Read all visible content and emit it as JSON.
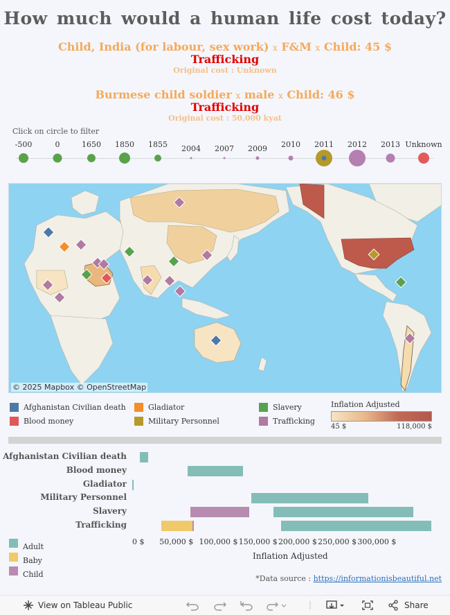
{
  "title": "How much would a human life cost today?",
  "stories": [
    {
      "head_a": "Child, India (for labour, sex work)",
      "x1": "x",
      "head_b": "F&M",
      "x2": "x",
      "head_c": "Child: 45 $",
      "category": "Trafficking",
      "original": "Original cost : Unknown"
    },
    {
      "head_a": "Burmese child soldier",
      "x1": "x",
      "head_b": "male",
      "x2": "x",
      "head_c": "Child: 46 $",
      "category": "Trafficking",
      "original": "Original cost : 50,000 kyat"
    }
  ],
  "timeline": {
    "hint": "Click on circle to filter",
    "years": [
      {
        "label": "-500",
        "color": "#5aa24a",
        "size": 14
      },
      {
        "label": "0",
        "color": "#5aa24a",
        "size": 13
      },
      {
        "label": "1650",
        "color": "#5aa24a",
        "size": 12
      },
      {
        "label": "1850",
        "color": "#5aa24a",
        "size": 16
      },
      {
        "label": "1855",
        "color": "#5aa24a",
        "size": 10
      },
      {
        "label": "2004",
        "color": "#b57fb0",
        "size": 3
      },
      {
        "label": "2007",
        "color": "#b57fb0",
        "size": 3
      },
      {
        "label": "2009",
        "color": "#b57fb0",
        "size": 5
      },
      {
        "label": "2010",
        "color": "#b57fb0",
        "size": 7
      },
      {
        "label": "2011",
        "color": "#b59a2a",
        "size": 24
      },
      {
        "label": "2012",
        "color": "#b57fb0",
        "size": 24
      },
      {
        "label": "2013",
        "color": "#b57fb0",
        "size": 13
      },
      {
        "label": "Unknown",
        "color": "#e25a5a",
        "size": 16
      }
    ]
  },
  "map": {
    "attribution": "© 2025 Mapbox  © OpenStreetMap"
  },
  "category_legend": [
    {
      "label": "Afghanistan Civilian death",
      "color": "#4e79a7"
    },
    {
      "label": "Gladiator",
      "color": "#f28e2b"
    },
    {
      "label": "Slavery",
      "color": "#59a14f"
    },
    {
      "label": "Blood money",
      "color": "#e15759"
    },
    {
      "label": "Military Personnel",
      "color": "#b59a2a"
    },
    {
      "label": "Trafficking",
      "color": "#b07aa1"
    }
  ],
  "gradient_legend": {
    "title": "Inflation Adjusted",
    "min": "45 $",
    "max": "118,000 $"
  },
  "chart_data": {
    "type": "bar",
    "orientation": "horizontal-range",
    "categories": [
      "Afghanistan Civilian death",
      "Blood money",
      "Gladiator",
      "Military Personnel",
      "Slavery",
      "Trafficking"
    ],
    "series": [
      {
        "name": "Adult",
        "color": "#84bdb8",
        "ranges": [
          [
            10000,
            20000
          ],
          [
            70000,
            140000
          ],
          [
            0,
            1500
          ],
          [
            150000,
            298000
          ],
          [
            178000,
            355000
          ],
          [
            188000,
            377000
          ]
        ]
      },
      {
        "name": "Baby",
        "color": "#f0c96a",
        "ranges": [
          [
            null,
            null
          ],
          [
            null,
            null
          ],
          [
            null,
            null
          ],
          [
            null,
            null
          ],
          [
            null,
            null
          ],
          [
            37000,
            76000
          ]
        ]
      },
      {
        "name": "Child",
        "color": "#b88bb0",
        "ranges": [
          [
            null,
            null
          ],
          [
            null,
            null
          ],
          [
            null,
            null
          ],
          [
            null,
            null
          ],
          [
            73000,
            148000
          ],
          [
            76000,
            78000
          ]
        ]
      }
    ],
    "x_ticks": [
      "0 $",
      "50,000 $",
      "100,000 $",
      "150,000 $",
      "200,000 $",
      "250,000 $",
      "300,000 $"
    ],
    "xlabel": "Inflation Adjusted",
    "xlim": [
      0,
      380000
    ]
  },
  "source": {
    "label": "*Data source :",
    "link": "https://informationisbeautiful.net"
  },
  "toolbar": {
    "view": "View on Tableau Public",
    "share": "Share"
  }
}
